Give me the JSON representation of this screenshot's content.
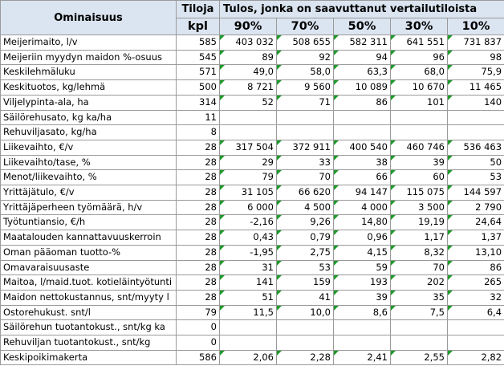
{
  "header": {
    "property_label": "Ominaisuus",
    "farms_label": "Tiloja",
    "farms_unit": "kpl",
    "group_title": "Tulos, jonka on saavuttanut vertailutiloista",
    "percentiles": [
      "90%",
      "70%",
      "50%",
      "30%",
      "10%"
    ]
  },
  "rows": [
    {
      "label": "Meijerimaito, l/v",
      "n": "585",
      "v": [
        "403 032",
        "508 655",
        "582 311",
        "641 551",
        "731 837"
      ]
    },
    {
      "label": "Meijeriin myydyn maidon %-osuus",
      "n": "545",
      "v": [
        "89",
        "92",
        "94",
        "96",
        "98"
      ]
    },
    {
      "label": "Keskilehmäluku",
      "n": "571",
      "v": [
        "49,0",
        "58,0",
        "63,3",
        "68,0",
        "75,9"
      ]
    },
    {
      "label": "Keskituotos, kg/lehmä",
      "n": "500",
      "v": [
        "8 721",
        "9 560",
        "10 089",
        "10 670",
        "11 465"
      ]
    },
    {
      "label": "Viljelypinta-ala, ha",
      "n": "314",
      "v": [
        "52",
        "71",
        "86",
        "101",
        "140"
      ]
    },
    {
      "label": "Säilörehusato, kg ka/ha",
      "n": "11",
      "v": [
        "",
        "",
        "",
        "",
        ""
      ]
    },
    {
      "label": "Rehuviljasato, kg/ha",
      "n": "8",
      "v": [
        "",
        "",
        "",
        "",
        ""
      ]
    },
    {
      "label": "Liikevaihto, €/v",
      "n": "28",
      "v": [
        "317 504",
        "372 911",
        "400 540",
        "460 746",
        "536 463"
      ]
    },
    {
      "label": "Liikevaihto/tase, %",
      "n": "28",
      "v": [
        "29",
        "33",
        "38",
        "39",
        "50"
      ]
    },
    {
      "label": "Menot/liikevaihto, %",
      "n": "28",
      "v": [
        "79",
        "70",
        "66",
        "60",
        "53"
      ]
    },
    {
      "label": "Yrittäjätulo, €/v",
      "n": "28",
      "v": [
        "31 105",
        "66 620",
        "94 147",
        "115 075",
        "144 597"
      ]
    },
    {
      "label": "Yrittäjäperheen työmäärä, h/v",
      "n": "28",
      "v": [
        "6 000",
        "4 500",
        "4 000",
        "3 500",
        "2 790"
      ]
    },
    {
      "label": "Työtuntiansio, €/h",
      "n": "28",
      "v": [
        "-2,16",
        "9,26",
        "14,80",
        "19,19",
        "24,64"
      ]
    },
    {
      "label": "Maatalouden kannattavuuskerroin",
      "n": "28",
      "v": [
        "0,43",
        "0,79",
        "0,96",
        "1,17",
        "1,37"
      ]
    },
    {
      "label": "Oman pääoman tuotto-%",
      "n": "28",
      "v": [
        "-1,95",
        "2,75",
        "4,15",
        "8,32",
        "13,10"
      ]
    },
    {
      "label": "Omavaraisuusaste",
      "n": "28",
      "v": [
        "31",
        "53",
        "59",
        "70",
        "86"
      ]
    },
    {
      "label": "Maitoa, l/maid.tuot. kotieläintyötunti",
      "n": "28",
      "v": [
        "141",
        "159",
        "193",
        "202",
        "265"
      ]
    },
    {
      "label": "Maidon nettokustannus, snt/myyty l",
      "n": "28",
      "v": [
        "51",
        "41",
        "39",
        "35",
        "32"
      ]
    },
    {
      "label": "Ostorehukust. snt/l",
      "n": "79",
      "v": [
        "11,5",
        "10,0",
        "8,6",
        "7,5",
        "6,4"
      ]
    },
    {
      "label": "Säilörehun tuotantokust., snt/kg ka",
      "n": "0",
      "v": [
        "",
        "",
        "",
        "",
        ""
      ]
    },
    {
      "label": "Rehuviljan tuotantokust., snt/kg",
      "n": "0",
      "v": [
        "",
        "",
        "",
        "",
        ""
      ]
    },
    {
      "label": "Keskipoikimakerta",
      "n": "586",
      "v": [
        "2,06",
        "2,28",
        "2,41",
        "2,55",
        "2,82"
      ]
    }
  ],
  "colors": {
    "header_bg": "#dbe5f1",
    "grid": "#9a9a9a",
    "comment_marker": "#1f9a2a"
  }
}
